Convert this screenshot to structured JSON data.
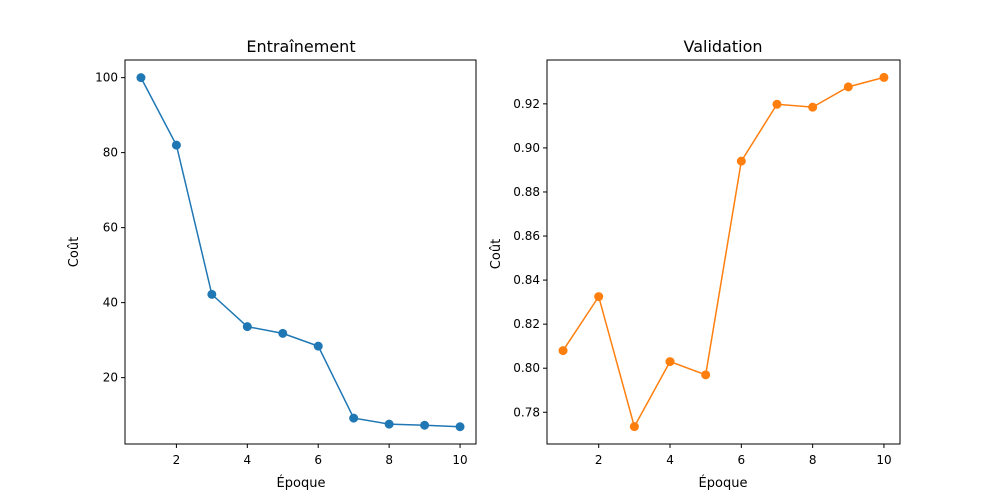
{
  "chart_data": [
    {
      "type": "line",
      "title": "Entraînement",
      "xlabel": "Époque",
      "ylabel": "Coût",
      "x": [
        1,
        2,
        3,
        4,
        5,
        6,
        7,
        8,
        9,
        10
      ],
      "series": [
        {
          "values": [
            100.0,
            82.0,
            42.2,
            33.6,
            31.8,
            28.4,
            9.2,
            7.6,
            7.3,
            6.9
          ],
          "color": "#1f77b4"
        }
      ],
      "xlim": [
        0.55,
        10.45
      ],
      "ylim": [
        2.3,
        104.7
      ],
      "xticks": [
        2,
        4,
        6,
        8,
        10
      ],
      "yticks": [
        20,
        40,
        60,
        80,
        100
      ],
      "ytick_decimals": 0,
      "marker": "circle",
      "grid": false,
      "legend": "none"
    },
    {
      "type": "line",
      "title": "Validation",
      "xlabel": "Époque",
      "ylabel": "Coût",
      "x": [
        1,
        2,
        3,
        4,
        5,
        6,
        7,
        8,
        9,
        10
      ],
      "series": [
        {
          "values": [
            0.808,
            0.8325,
            0.7735,
            0.803,
            0.797,
            0.894,
            0.9198,
            0.9185,
            0.9277,
            0.932
          ],
          "color": "#ff7f0e"
        }
      ],
      "xlim": [
        0.55,
        10.45
      ],
      "ylim": [
        0.7656,
        0.9399
      ],
      "xticks": [
        2,
        4,
        6,
        8,
        10
      ],
      "yticks": [
        0.78,
        0.8,
        0.82,
        0.84,
        0.86,
        0.88,
        0.9,
        0.92
      ],
      "ytick_decimals": 2,
      "marker": "circle",
      "grid": false,
      "legend": "none"
    }
  ]
}
